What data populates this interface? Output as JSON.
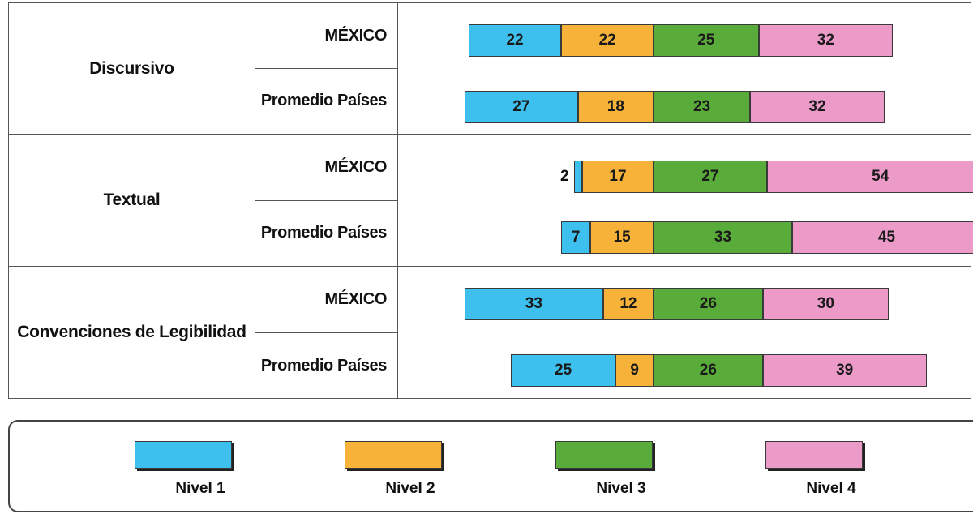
{
  "colors": {
    "nivel1": "#3ec0ee",
    "nivel2": "#f7b23a",
    "nivel3": "#5aac3a",
    "nivel4": "#ec9ac8"
  },
  "legend": [
    "Nivel 1",
    "Nivel 2",
    "Nivel 3",
    "Nivel 4"
  ],
  "chart_data": {
    "type": "bar",
    "orientation": "horizontal",
    "stacked": true,
    "diverging": true,
    "diverging_split": "between Nivel 2 and Nivel 3",
    "groups": [
      {
        "category": "Discursivo",
        "rows": [
          {
            "label": "MÉXICO",
            "values": [
              22,
              22,
              25,
              32
            ]
          },
          {
            "label": "Promedio Países",
            "values": [
              27,
              18,
              23,
              32
            ]
          }
        ]
      },
      {
        "category": "Textual",
        "rows": [
          {
            "label": "MÉXICO",
            "values": [
              2,
              17,
              27,
              54
            ]
          },
          {
            "label": "Promedio Países",
            "values": [
              7,
              15,
              33,
              45
            ]
          }
        ]
      },
      {
        "category": "Convenciones de Legibilidad",
        "rows": [
          {
            "label": "MÉXICO",
            "values": [
              33,
              12,
              26,
              30
            ]
          },
          {
            "label": "Promedio Países",
            "values": [
              25,
              9,
              26,
              39
            ]
          }
        ]
      }
    ],
    "series": [
      {
        "name": "Nivel 1"
      },
      {
        "name": "Nivel 2"
      },
      {
        "name": "Nivel 3"
      },
      {
        "name": "Nivel 4"
      }
    ],
    "legend_position": "bottom"
  }
}
